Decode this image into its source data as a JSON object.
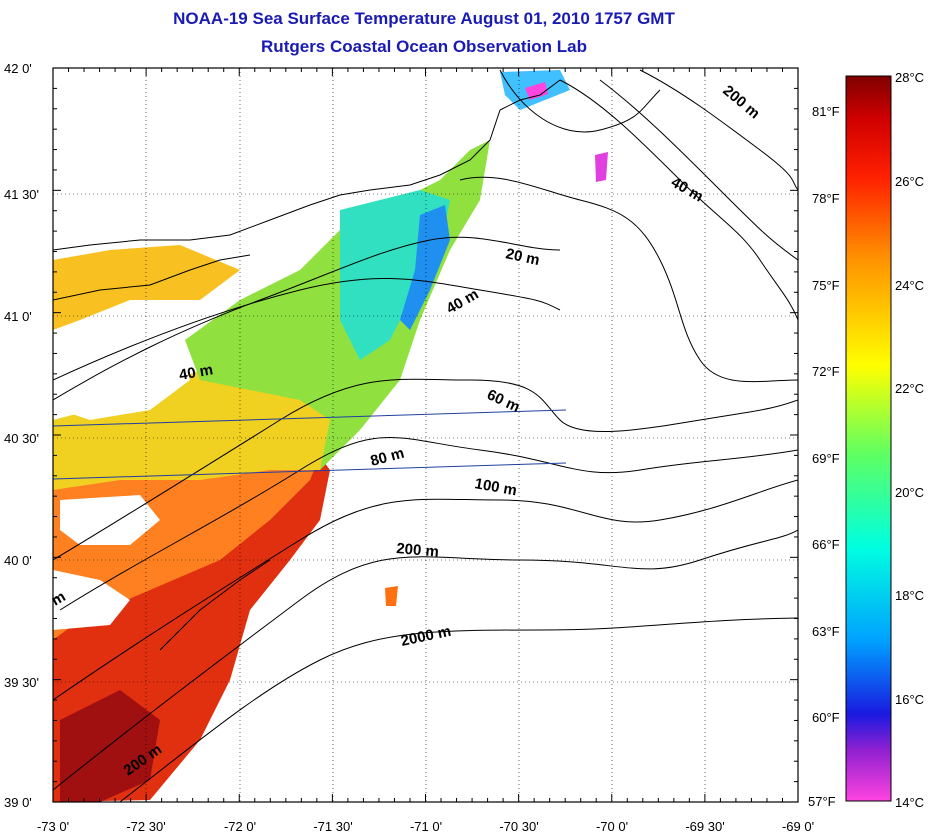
{
  "title": "NOAA-19 Sea Surface Temperature August 01, 2010 1757 GMT",
  "subtitle": "Rutgers Coastal Ocean Observation Lab",
  "map": {
    "lon_labels": [
      "-73 0'",
      "-72 30'",
      "-72 0'",
      "-71 30'",
      "-71 0'",
      "-70 30'",
      "-70 0'",
      "-69 30'",
      "-69 0'"
    ],
    "lat_labels": [
      "42 0'",
      "41 30'",
      "41 0'",
      "40 30'",
      "40 0'",
      "39 30'",
      "39 0'"
    ],
    "lon_range": [
      -73,
      -69
    ],
    "lat_range": [
      39,
      42
    ],
    "grid": "dotted",
    "isobath_labels": [
      "200 m",
      "40 m",
      "20 m",
      "40 m",
      "40 m",
      "60 m",
      "80 m",
      "100 m",
      "200 m",
      "2000 m",
      "200 m",
      "m"
    ]
  },
  "colorbar": {
    "celsius_labels": [
      "28°C",
      "26°C",
      "24°C",
      "22°C",
      "20°C",
      "18°C",
      "16°C",
      "14°C"
    ],
    "fahrenheit_labels": [
      "81°F",
      "78°F",
      "75°F",
      "72°F",
      "69°F",
      "66°F",
      "63°F",
      "60°F",
      "57°F"
    ],
    "range_c": [
      14,
      28
    ],
    "colors": [
      "#ff44e0",
      "#9020d0",
      "#1a1ae0",
      "#00a0ff",
      "#00ffe0",
      "#60ff60",
      "#ffff00",
      "#ff9000",
      "#ff2000",
      "#d00000",
      "#800000"
    ]
  }
}
